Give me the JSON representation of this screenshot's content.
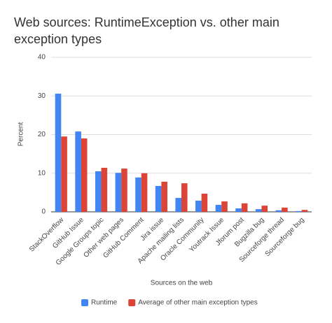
{
  "chart_data": {
    "type": "bar",
    "title": "Web sources: RuntimeException vs. other main exception types",
    "categories": [
      "StackOverflow",
      "GitHub Issue",
      "Google Groups topic",
      "Other web pages",
      "GitHub Comment",
      "Jira issue",
      "Apache mailing lists",
      "Oracle Community",
      "Youtrack Issue",
      "Jforum post",
      "Bugzilla bug",
      "Sourceforge thread",
      "Sourceforge bug"
    ],
    "series": [
      {
        "name": "Runtime",
        "color": "#4285f4",
        "values": [
          30.6,
          20.8,
          10.5,
          10.1,
          8.9,
          6.7,
          3.6,
          2.9,
          1.8,
          0.9,
          0.7,
          0.4,
          0.2
        ]
      },
      {
        "name": "Average of other main exception types",
        "color": "#db4437",
        "values": [
          19.5,
          19.0,
          11.4,
          11.2,
          10.0,
          7.8,
          7.4,
          4.7,
          2.7,
          2.2,
          1.6,
          1.1,
          0.5
        ]
      }
    ],
    "ylim": [
      0,
      40
    ],
    "yticks": [
      0,
      10,
      20,
      30,
      40
    ],
    "grid": true,
    "xlabel": "Sources on the web",
    "ylabel": "Percent",
    "legend": "bottom"
  }
}
